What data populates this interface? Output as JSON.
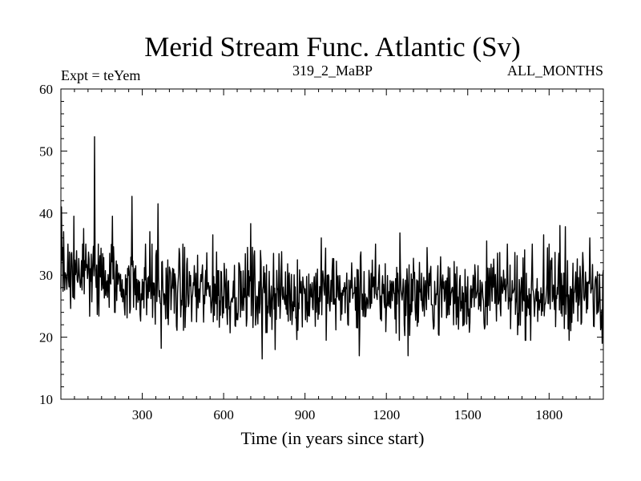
{
  "chart_data": {
    "type": "line",
    "title": "Merid Stream Func. Atlantic (Sv)",
    "subtitle_left": "Expt = teYem",
    "subtitle_center": "319_2_MaBP",
    "subtitle_right": "ALL_MONTHS",
    "xlabel": "Time (in years since start)",
    "ylabel": "",
    "xlim": [
      0,
      2000
    ],
    "ylim": [
      10,
      60
    ],
    "x_ticks": [
      300,
      600,
      900,
      1200,
      1500,
      1800
    ],
    "y_ticks": [
      10,
      20,
      30,
      40,
      50,
      60
    ],
    "grid": false,
    "series": [
      {
        "name": "Merid Stream Func. Atlantic",
        "color": "#000000",
        "x_start": 0,
        "x_step": 2,
        "baseline_trend": [
          [
            0,
            31
          ],
          [
            150,
            29.5
          ],
          [
            400,
            27.5
          ],
          [
            1000,
            27
          ],
          [
            1600,
            27
          ],
          [
            2000,
            27
          ]
        ],
        "noise_amplitude": 3.2,
        "spikes": [
          {
            "x": 2,
            "y": 41
          },
          {
            "x": 10,
            "y": 37
          },
          {
            "x": 48,
            "y": 39.5
          },
          {
            "x": 84,
            "y": 37.5
          },
          {
            "x": 124,
            "y": 52.3
          },
          {
            "x": 190,
            "y": 39.5
          },
          {
            "x": 262,
            "y": 42.7
          },
          {
            "x": 328,
            "y": 37
          },
          {
            "x": 358,
            "y": 41.5
          },
          {
            "x": 370,
            "y": 18.2
          },
          {
            "x": 560,
            "y": 36.5
          },
          {
            "x": 700,
            "y": 38.3
          },
          {
            "x": 742,
            "y": 16.5
          },
          {
            "x": 790,
            "y": 18
          },
          {
            "x": 960,
            "y": 36
          },
          {
            "x": 1100,
            "y": 17
          },
          {
            "x": 1250,
            "y": 36.8
          },
          {
            "x": 1280,
            "y": 17
          },
          {
            "x": 1570,
            "y": 35.5
          },
          {
            "x": 1780,
            "y": 36.5
          },
          {
            "x": 1840,
            "y": 38
          },
          {
            "x": 1860,
            "y": 37.8
          },
          {
            "x": 1950,
            "y": 36
          },
          {
            "x": 1996,
            "y": 19
          }
        ]
      }
    ]
  }
}
